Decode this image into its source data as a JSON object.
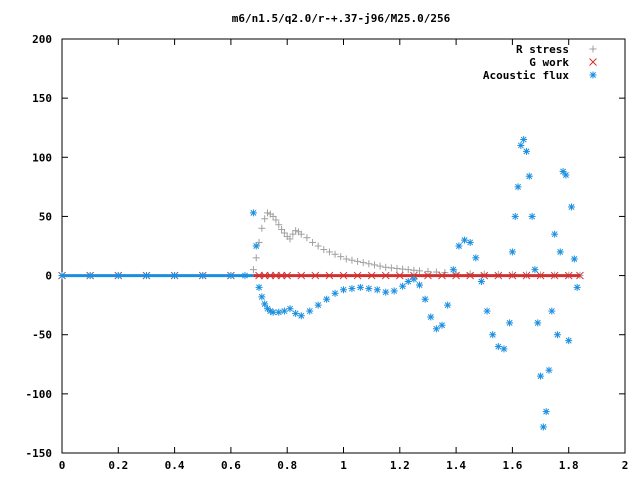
{
  "chart_data": {
    "type": "scatter",
    "title": "m6/n1.5/q2.0/r-+.37-j96/M25.0/256",
    "xlabel": "",
    "ylabel": "",
    "xlim": [
      0,
      2
    ],
    "ylim": [
      -150,
      200
    ],
    "x_ticks": [
      "0",
      "0.2",
      "0.4",
      "0.6",
      "0.8",
      "1",
      "1.2",
      "1.4",
      "1.6",
      "1.8",
      "2"
    ],
    "y_ticks": [
      "200",
      "150",
      "100",
      "50",
      "0",
      "-50",
      "-100",
      "-150"
    ],
    "grid": false,
    "legend_position": "top-right",
    "series": [
      {
        "name": "R stress",
        "marker": "plus",
        "color": "#a0a0a0",
        "x": [
          0.0,
          0.1,
          0.2,
          0.3,
          0.4,
          0.5,
          0.6,
          0.68,
          0.69,
          0.7,
          0.71,
          0.72,
          0.73,
          0.74,
          0.75,
          0.76,
          0.77,
          0.78,
          0.79,
          0.8,
          0.81,
          0.82,
          0.83,
          0.84,
          0.85,
          0.87,
          0.89,
          0.91,
          0.93,
          0.95,
          0.97,
          0.99,
          1.01,
          1.03,
          1.05,
          1.07,
          1.09,
          1.11,
          1.13,
          1.15,
          1.17,
          1.19,
          1.21,
          1.23,
          1.25,
          1.27,
          1.3,
          1.33,
          1.36,
          1.4,
          1.45,
          1.5,
          1.55,
          1.6,
          1.65,
          1.7,
          1.75,
          1.8,
          1.84
        ],
        "y": [
          0,
          0,
          0,
          0,
          0,
          0,
          0,
          5,
          15,
          28,
          40,
          48,
          53,
          52,
          50,
          47,
          43,
          39,
          36,
          33,
          31,
          35,
          38,
          37,
          35,
          32,
          28,
          25,
          22,
          20,
          18,
          16,
          14,
          13,
          12,
          11,
          10,
          9,
          8,
          7,
          6.5,
          6,
          5.5,
          5,
          4.5,
          4,
          3.5,
          3,
          2.5,
          2,
          1.5,
          1.2,
          1,
          0.8,
          0.6,
          0.5,
          0.4,
          0.3,
          0.2
        ]
      },
      {
        "name": "G work",
        "marker": "cross",
        "color": "#d03030",
        "x": [
          0.0,
          0.1,
          0.2,
          0.3,
          0.4,
          0.5,
          0.6,
          0.7,
          0.72,
          0.74,
          0.76,
          0.78,
          0.8,
          0.85,
          0.9,
          0.95,
          1.0,
          1.05,
          1.1,
          1.15,
          1.2,
          1.25,
          1.3,
          1.35,
          1.4,
          1.45,
          1.5,
          1.55,
          1.6,
          1.65,
          1.7,
          1.75,
          1.8,
          1.84
        ],
        "y": [
          0,
          0,
          0,
          0,
          0,
          0,
          0,
          0,
          0,
          0,
          0,
          0,
          0,
          0,
          0,
          0,
          0,
          0,
          0,
          0,
          0,
          0,
          0,
          0,
          0,
          0,
          0,
          0,
          0,
          0,
          0,
          0,
          0,
          0
        ]
      },
      {
        "name": "Acoustic flux",
        "marker": "star",
        "color": "#1a8fe0",
        "x": [
          0.0,
          0.1,
          0.2,
          0.3,
          0.4,
          0.5,
          0.6,
          0.65,
          0.68,
          0.69,
          0.7,
          0.71,
          0.72,
          0.73,
          0.74,
          0.75,
          0.77,
          0.79,
          0.81,
          0.83,
          0.85,
          0.88,
          0.91,
          0.94,
          0.97,
          1.0,
          1.03,
          1.06,
          1.09,
          1.12,
          1.15,
          1.18,
          1.21,
          1.23,
          1.25,
          1.27,
          1.29,
          1.31,
          1.33,
          1.35,
          1.37,
          1.39,
          1.41,
          1.43,
          1.45,
          1.47,
          1.49,
          1.51,
          1.53,
          1.55,
          1.57,
          1.59,
          1.6,
          1.61,
          1.62,
          1.63,
          1.64,
          1.65,
          1.66,
          1.67,
          1.68,
          1.69,
          1.7,
          1.71,
          1.72,
          1.73,
          1.74,
          1.75,
          1.76,
          1.77,
          1.78,
          1.79,
          1.8,
          1.81,
          1.82,
          1.83
        ],
        "y": [
          0,
          0,
          0,
          0,
          0,
          0,
          0,
          0,
          53,
          25,
          -10,
          -18,
          -24,
          -28,
          -30,
          -31,
          -31,
          -30,
          -28,
          -32,
          -34,
          -30,
          -25,
          -20,
          -15,
          -12,
          -11,
          -10,
          -11,
          -12,
          -14,
          -13,
          -9,
          -5,
          -3,
          -8,
          -20,
          -35,
          -45,
          -42,
          -25,
          5,
          25,
          30,
          28,
          15,
          -5,
          -30,
          -50,
          -60,
          -62,
          -40,
          20,
          50,
          75,
          110,
          115,
          105,
          84,
          50,
          5,
          -40,
          -85,
          -128,
          -115,
          -80,
          -30,
          35,
          -50,
          20,
          88,
          85,
          -55,
          58,
          14,
          -10
        ]
      }
    ]
  }
}
